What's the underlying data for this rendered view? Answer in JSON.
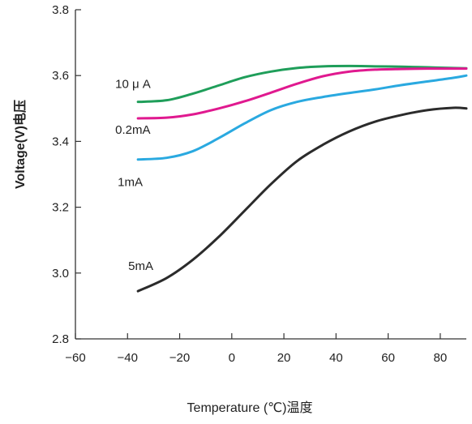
{
  "chart_data": {
    "type": "line",
    "xlabel": "Temperature (℃)温度",
    "ylabel": "Voltage(V)电压",
    "xlim": [
      -60,
      90
    ],
    "ylim": [
      2.8,
      3.8
    ],
    "x_ticks": [
      -60,
      -40,
      -20,
      0,
      20,
      40,
      60,
      80
    ],
    "y_ticks": [
      2.8,
      3.0,
      3.2,
      3.4,
      3.6,
      3.8
    ],
    "grid": false,
    "series": [
      {
        "name": "10 μ A",
        "color": "#1f9e5a",
        "x": [
          -36,
          -25,
          -15,
          -5,
          5,
          15,
          25,
          35,
          45,
          55,
          65,
          75,
          85,
          90
        ],
        "y": [
          3.52,
          3.525,
          3.545,
          3.57,
          3.595,
          3.612,
          3.623,
          3.628,
          3.629,
          3.628,
          3.627,
          3.625,
          3.623,
          3.622
        ]
      },
      {
        "name": "0.2mA",
        "color": "#e0198f",
        "x": [
          -36,
          -25,
          -15,
          -5,
          5,
          15,
          25,
          35,
          45,
          55,
          65,
          75,
          85,
          90
        ],
        "y": [
          3.47,
          3.472,
          3.482,
          3.5,
          3.522,
          3.548,
          3.575,
          3.598,
          3.612,
          3.618,
          3.62,
          3.621,
          3.621,
          3.621
        ]
      },
      {
        "name": "1mA",
        "color": "#2aa9e0",
        "x": [
          -36,
          -25,
          -15,
          -5,
          5,
          15,
          25,
          35,
          45,
          55,
          65,
          75,
          85,
          90
        ],
        "y": [
          3.345,
          3.35,
          3.37,
          3.41,
          3.455,
          3.495,
          3.52,
          3.535,
          3.547,
          3.558,
          3.571,
          3.582,
          3.593,
          3.6
        ]
      },
      {
        "name": "5mA",
        "color": "#2b2b2b",
        "x": [
          -36,
          -25,
          -15,
          -5,
          5,
          15,
          25,
          35,
          45,
          55,
          65,
          75,
          85,
          90
        ],
        "y": [
          2.945,
          2.985,
          3.04,
          3.11,
          3.19,
          3.27,
          3.34,
          3.39,
          3.43,
          3.46,
          3.48,
          3.495,
          3.502,
          3.5
        ]
      }
    ]
  }
}
